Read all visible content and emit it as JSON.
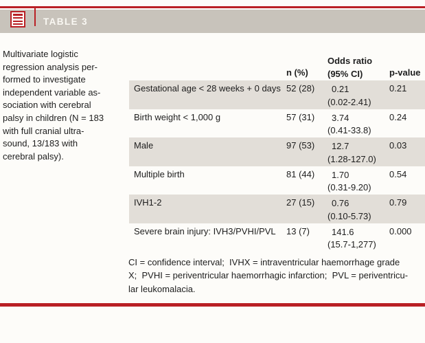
{
  "header": {
    "title": "TABLE 3"
  },
  "caption": {
    "lines": [
      "Multivariate logistic",
      "regression analysis per-",
      "formed to investigate",
      "independent variable as-",
      "sociation with cerebral",
      "palsy in children (N = 183",
      "with full cranial ultra-",
      "sound, 13/183 with",
      "cerebral palsy)."
    ]
  },
  "table": {
    "columns": {
      "n": "n (%)",
      "or_line1": "Odds ratio",
      "or_line2": "(95% CI)",
      "p": "p-value"
    },
    "rows": [
      {
        "label": "Gestational age < 28 weeks + 0 days",
        "n": "52 (28)",
        "or": "0.21",
        "ci": "(0.02-2.41)",
        "p": "0.21"
      },
      {
        "label": "Birth weight < 1,000 g",
        "n": "57 (31)",
        "or": "3.74",
        "ci": "(0.41-33.8)",
        "p": "0.24"
      },
      {
        "label": "Male",
        "n": "97 (53)",
        "or": "12.7",
        "ci": "(1.28-127.0)",
        "p": "0.03"
      },
      {
        "label": "Multiple birth",
        "n": "81 (44)",
        "or": "1.70",
        "ci": "(0.31-9.20)",
        "p": "0.54"
      },
      {
        "label": "IVH1-2",
        "n": "27 (15)",
        "or": "0.76",
        "ci": "(0.10-5.73)",
        "p": "0.79"
      },
      {
        "label": "Severe brain injury: IVH3/PVHI/PVL",
        "n": "13 (7)",
        "or": "141.6",
        "ci": "(15.7-1,277)",
        "p": "0.000"
      }
    ]
  },
  "footnote": {
    "lines": [
      "CI = confidence interval;  IVHX = intraventricular haemorrhage grade",
      "X;  PVHI = periventricular haemorrhagic infarction;  PVL = periventricu-",
      "lar leukomalacia."
    ]
  },
  "colors": {
    "accent_red": "#b92025",
    "header_bar": "#c8c3bb",
    "row_shade": "#e2ded8"
  }
}
